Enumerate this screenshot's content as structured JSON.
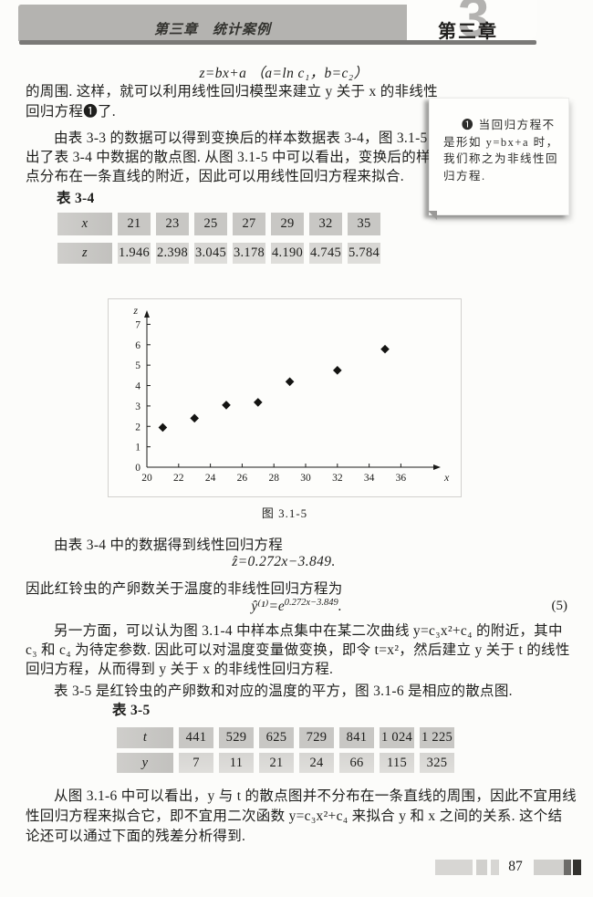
{
  "header": {
    "running_title": "第三章　统计案例",
    "chapter_big_number": "3",
    "chapter_label": "第三章"
  },
  "note": {
    "text": "❶ 当回归方程不是形如 y=bx+a 时，我们称之为非线性回归方程."
  },
  "formulas": {
    "f1": "z=bx+a （a=ln c₁，b=c₂）",
    "f2": "ẑ=0.272x−3.849.",
    "f3_base": "ŷ⁽¹⁾=e",
    "f3_exp": "0.272x−3.849",
    "f3_end": ".",
    "f3_number": "(5)"
  },
  "paragraphs": {
    "p1": [
      "的周围. 这样，就可以利用线性回归模型来建立 y 关于 x 的非线性",
      "回归方程❶了."
    ],
    "p2": [
      "由表 3-3 的数据可以得到变换后的样本数据表 3-4，图 3.1-5 给",
      "出了表 3-4 中数据的散点图. 从图 3.1-5 中可以看出，变换后的样本",
      "点分布在一条直线的附近，因此可以用线性回归方程来拟合."
    ],
    "p3": "由表 3-4 中的数据得到线性回归方程",
    "p4": "因此红铃虫的产卵数关于温度的非线性回归方程为",
    "p5": [
      "另一方面，可以认为图 3.1-4 中样本点集中在某二次曲线 y=c₃x²+c₄ 的附近，其中",
      "c₃ 和 c₄ 为待定参数. 因此可以对温度变量做变换，即令 t=x²，然后建立 y 关于 t 的线性",
      "回归方程，从而得到 y 关于 x 的非线性回归方程."
    ],
    "p6": "表 3-5 是红铃虫的产卵数和对应的温度的平方，图 3.1-6 是相应的散点图.",
    "p7": [
      "从图 3.1-6 中可以看出，y 与 t 的散点图并不分布在一条直线的周围，因此不宜用线",
      "性回归方程来拟合它，即不宜用二次函数 y=c₃x²+c₄ 来拟合 y 和 x 之间的关系. 这个结",
      "论还可以通过下面的残差分析得到."
    ]
  },
  "tables": {
    "t34": {
      "label": "表 3-4",
      "rows": [
        [
          "x",
          "21",
          "23",
          "25",
          "27",
          "29",
          "32",
          "35"
        ],
        [
          "z",
          "1.946",
          "2.398",
          "3.045",
          "3.178",
          "4.190",
          "4.745",
          "5.784"
        ]
      ]
    },
    "t35": {
      "label": "表 3-5",
      "rows": [
        [
          "t",
          "441",
          "529",
          "625",
          "729",
          "841",
          "1 024",
          "1 225"
        ],
        [
          "y",
          "7",
          "11",
          "21",
          "24",
          "66",
          "115",
          "325"
        ]
      ]
    }
  },
  "chart_data": {
    "type": "scatter",
    "x": [
      21,
      23,
      25,
      27,
      29,
      32,
      35
    ],
    "series": [
      {
        "name": "z",
        "values": [
          1.946,
          2.398,
          3.045,
          3.178,
          4.19,
          4.745,
          5.784
        ]
      }
    ],
    "xlabel": "x",
    "ylabel": "z",
    "xlim": [
      20,
      37.7
    ],
    "ylim": [
      0,
      7.6
    ],
    "xticks": [
      20,
      22,
      24,
      26,
      28,
      30,
      32,
      34,
      36
    ],
    "yticks": [
      0,
      1,
      2,
      3,
      4,
      5,
      6,
      7
    ],
    "caption": "图 3.1-5",
    "grid": false,
    "marker": "diamond",
    "marker_color": "#141412"
  },
  "footer": {
    "page_number": "87"
  }
}
